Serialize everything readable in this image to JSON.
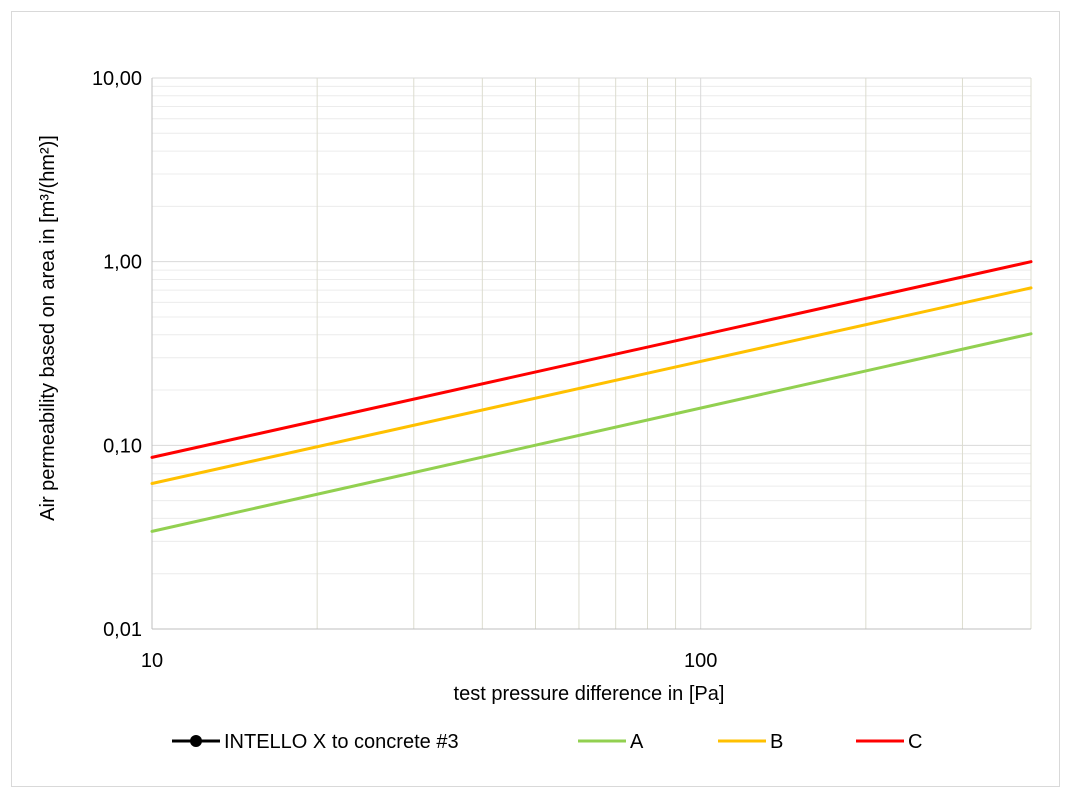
{
  "chart_data": {
    "type": "line",
    "xscale": "log",
    "yscale": "log",
    "xlabel": "test pressure difference in [Pa]",
    "ylabel": "Air permeability based on area in [m³/(hm²)]",
    "xlim": [
      10,
      400
    ],
    "ylim": [
      0.01,
      10
    ],
    "x_ticks": [
      {
        "value": 10,
        "label": "10"
      },
      {
        "value": 100,
        "label": "100"
      }
    ],
    "y_ticks": [
      {
        "value": 0.01,
        "label": "0,01"
      },
      {
        "value": 0.1,
        "label": "0,10"
      },
      {
        "value": 1,
        "label": "1,00"
      },
      {
        "value": 10,
        "label": "10,00"
      }
    ],
    "grid": true,
    "legend_position": "bottom",
    "series": [
      {
        "name": "INTELLO X to concrete #3",
        "color": "#000000",
        "marker": "circle",
        "x": [],
        "y": []
      },
      {
        "name": "A",
        "color": "#92d050",
        "x": [
          10,
          400
        ],
        "y": [
          0.034,
          0.405
        ]
      },
      {
        "name": "B",
        "color": "#ffc000",
        "x": [
          10,
          400
        ],
        "y": [
          0.062,
          0.72
        ]
      },
      {
        "name": "C",
        "color": "#ff0000",
        "x": [
          10,
          400
        ],
        "y": [
          0.086,
          1.0
        ]
      }
    ]
  }
}
